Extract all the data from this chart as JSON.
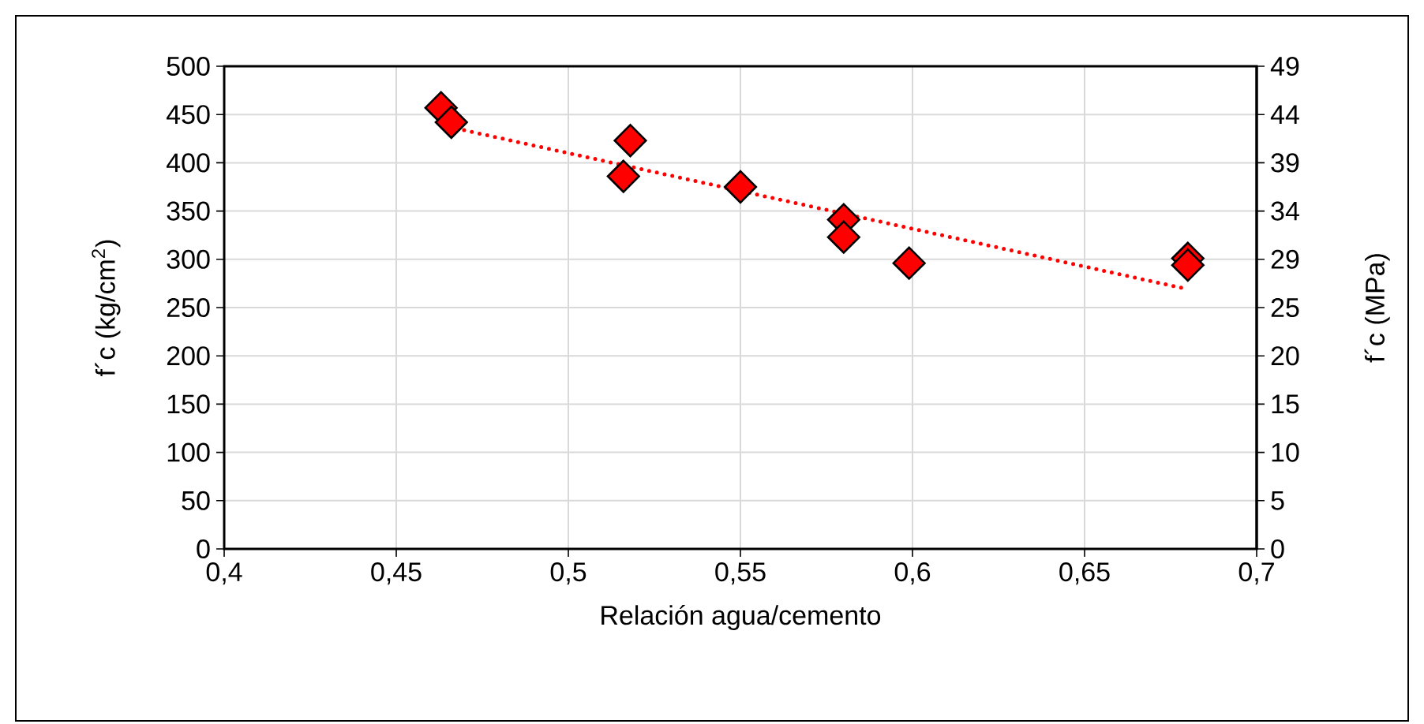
{
  "chart_data": {
    "type": "scatter",
    "xlabel": "Relación agua/cemento",
    "ylabel": "f´c (kg/cm$^{2}$)",
    "y2label": "f´c (MPa)",
    "xlim": [
      0.4,
      0.7
    ],
    "xticks": [
      {
        "value": 0.4,
        "label": "0,4"
      },
      {
        "value": 0.45,
        "label": "0,45"
      },
      {
        "value": 0.5,
        "label": "0,5"
      },
      {
        "value": 0.55,
        "label": "0,55"
      },
      {
        "value": 0.6,
        "label": "0,6"
      },
      {
        "value": 0.65,
        "label": "0,65"
      },
      {
        "value": 0.7,
        "label": "0,7"
      }
    ],
    "ylim": [
      0,
      500
    ],
    "yticks": [
      0,
      50,
      100,
      150,
      200,
      250,
      300,
      350,
      400,
      450,
      500
    ],
    "y2lim": [
      0,
      49
    ],
    "y2ticks": [
      0,
      {
        "value": 4.9,
        "label": "5"
      },
      {
        "value": 9.8,
        "label": "10"
      },
      {
        "value": 14.7,
        "label": "15"
      },
      {
        "value": 19.6,
        "label": "20"
      },
      {
        "value": 24.5,
        "label": "25"
      },
      {
        "value": 29.4,
        "label": "29"
      },
      {
        "value": 34.3,
        "label": "34"
      },
      {
        "value": 39.2,
        "label": "39"
      },
      {
        "value": 44.1,
        "label": "44"
      },
      49
    ],
    "grid": true,
    "marker": "diamond",
    "series": [
      {
        "color": "#ff0000",
        "x": [
          0.463,
          0.466,
          0.518,
          0.516,
          0.55,
          0.58,
          0.58,
          0.599,
          0.68,
          0.68
        ],
        "values": [
          457,
          442,
          423,
          386,
          375,
          341,
          323,
          296,
          301,
          294
        ]
      },
      {
        "type": "line",
        "color": "#ff0000",
        "line_style": "dotted",
        "marker": "none",
        "x": [
          0.463,
          0.68
        ],
        "values": [
          439,
          269
        ]
      }
    ]
  }
}
